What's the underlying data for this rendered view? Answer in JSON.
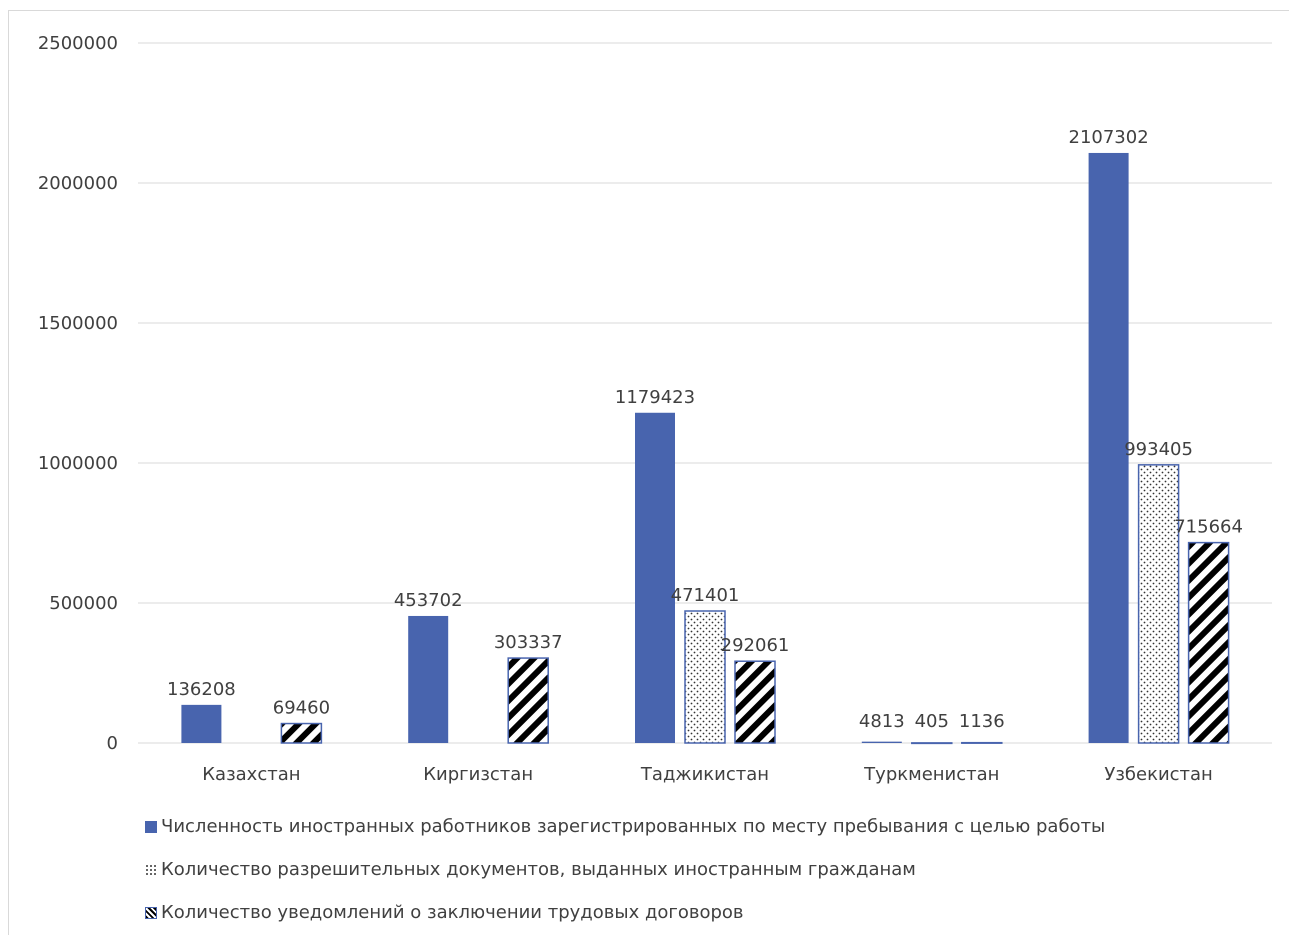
{
  "chart_data": {
    "type": "bar",
    "categories": [
      "Казахстан",
      "Киргизстан",
      "Таджикистан",
      "Туркменистан",
      "Узбекистан"
    ],
    "series": [
      {
        "name": "Численность иностранных работников зарегистрированных по месту пребывания с целью работы",
        "values": [
          136208,
          453702,
          1179423,
          4813,
          2107302
        ],
        "labels": [
          "136208",
          "453702",
          "1179423",
          "4813",
          "2107302"
        ],
        "fill": "#4864ae",
        "pattern": "solid"
      },
      {
        "name": "Количество разрешительных документов, выданных иностранным гражданам",
        "values": [
          0,
          0,
          471401,
          405,
          993405
        ],
        "labels": [
          "",
          "",
          "471401",
          "405",
          "993405"
        ],
        "fill": "#ffffff",
        "pattern": "dots"
      },
      {
        "name": "Количество уведомлений о заключении трудовых договоров",
        "values": [
          69460,
          303337,
          292061,
          1136,
          715664
        ],
        "labels": [
          "69460",
          "303337",
          "292061",
          "1136",
          "715664"
        ],
        "fill": "#000000",
        "pattern": "diagonal"
      }
    ],
    "yticks": [
      "0",
      "500000",
      "1000000",
      "1500000",
      "2000000",
      "2500000"
    ],
    "ylim": [
      0,
      2500000
    ],
    "grid": true,
    "legend_position": "bottom",
    "title": "",
    "xlabel": "",
    "ylabel": ""
  },
  "colors": {
    "series_blue": "#4864ae",
    "bar_border": "#4864ae",
    "grid": "#d9d9d9",
    "text": "#404040"
  }
}
